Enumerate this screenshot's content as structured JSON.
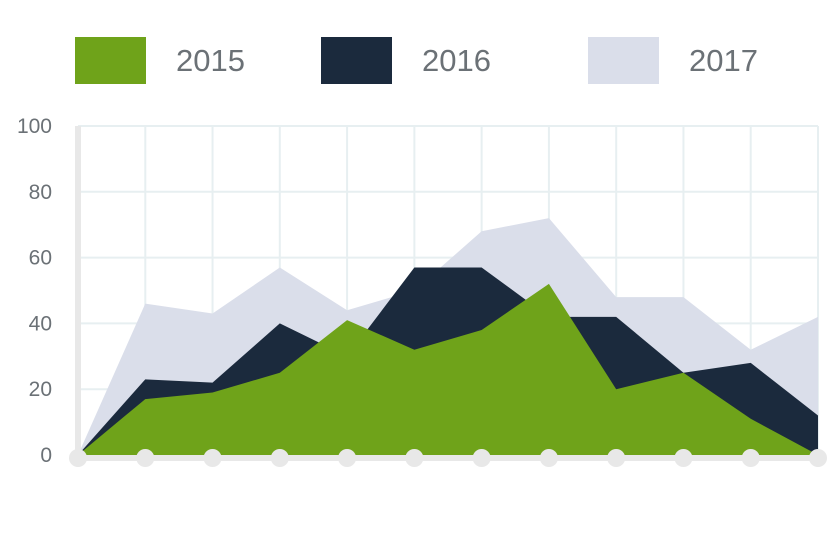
{
  "chart_data": {
    "type": "area",
    "title": "",
    "xlabel": "",
    "ylabel": "",
    "ylim": [
      0,
      100
    ],
    "yticks": [
      "0",
      "20",
      "40",
      "60",
      "80",
      "100"
    ],
    "x": [
      1,
      2,
      3,
      4,
      5,
      6,
      7,
      8,
      9,
      10,
      11,
      12
    ],
    "grid": true,
    "legend_position": "top",
    "series": [
      {
        "name": "2017",
        "color": "#dadeea",
        "values": [
          0,
          46,
          43,
          57,
          44,
          50,
          68,
          72,
          48,
          48,
          32,
          42
        ]
      },
      {
        "name": "2016",
        "color": "#1b2a3d",
        "values": [
          0,
          23,
          22,
          40,
          30,
          57,
          57,
          42,
          42,
          25,
          28,
          12
        ]
      },
      {
        "name": "2015",
        "color": "#6fa31a",
        "values": [
          0,
          17,
          19,
          25,
          41,
          32,
          38,
          52,
          20,
          25,
          11,
          0
        ]
      }
    ]
  },
  "legend": [
    {
      "label": "2015",
      "color": "#6fa31a"
    },
    {
      "label": "2016",
      "color": "#1b2a3d"
    },
    {
      "label": "2017",
      "color": "#dadeea"
    }
  ]
}
